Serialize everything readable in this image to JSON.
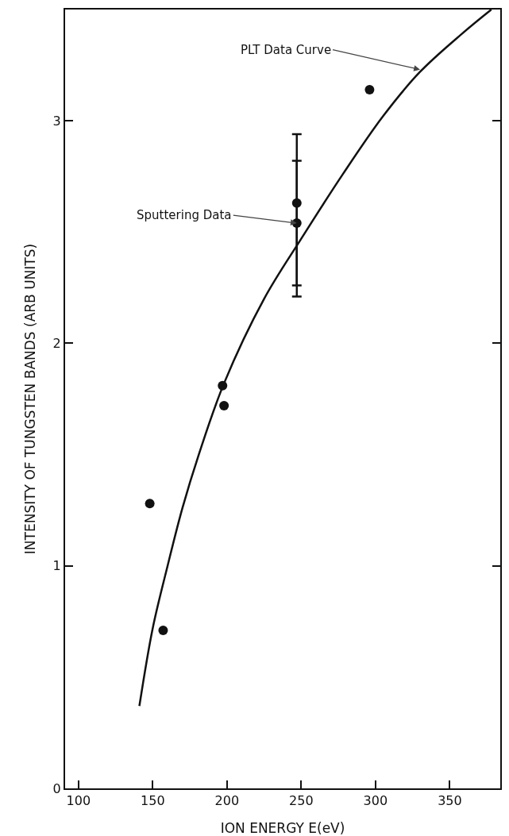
{
  "chart_data": {
    "type": "scatter",
    "xlabel": "ION ENERGY E(eV)",
    "ylabel": "INTENSITY OF TUNGSTEN BANDS (ARB UNITS)",
    "xlim": [
      91,
      384
    ],
    "xticks": [
      100,
      150,
      200,
      250,
      300,
      350
    ],
    "ylim": [
      0,
      3.5
    ],
    "yticks": [
      0,
      1,
      2,
      3
    ],
    "grid": false,
    "marker": "circle",
    "series": [
      {
        "color": "#111111",
        "x": [
          148,
          157,
          197,
          198,
          247,
          247,
          296
        ],
        "values": [
          1.28,
          0.71,
          1.81,
          1.72,
          2.63,
          2.54,
          3.14
        ],
        "errors": [
          null,
          null,
          null,
          null,
          [
            2.26,
            2.94
          ],
          [
            2.21,
            2.82
          ],
          null
        ]
      },
      {
        "type": "line",
        "color": "#111111",
        "marker": "none",
        "line_style": "solid",
        "x": [
          141,
          150,
          160,
          170,
          181,
          198,
          225,
          250,
          278,
          305,
          330,
          358,
          378
        ],
        "values": [
          0.37,
          0.72,
          1.0,
          1.26,
          1.5,
          1.82,
          2.2,
          2.47,
          2.76,
          3.02,
          3.22,
          3.39,
          3.5
        ]
      }
    ],
    "annotations": [
      {
        "text": "PLT Data Curve",
        "x": 330,
        "y": 3.23
      },
      {
        "text": "Sputtering Data",
        "x": 247,
        "y": 2.54
      }
    ]
  }
}
